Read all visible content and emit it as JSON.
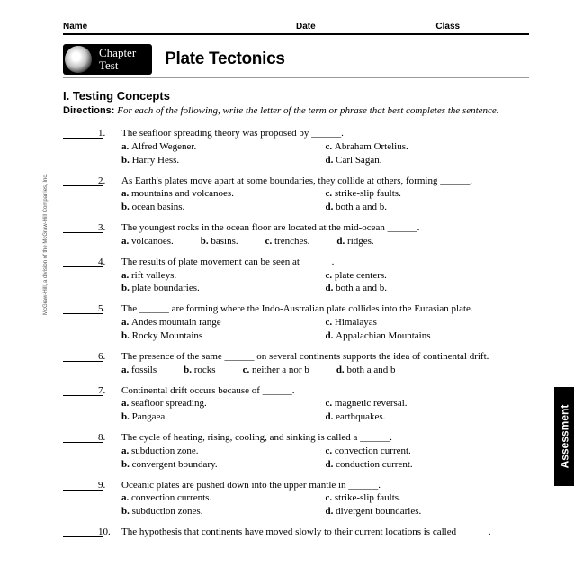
{
  "header": {
    "name": "Name",
    "date": "Date",
    "class": "Class"
  },
  "badge": {
    "line1": "Chapter",
    "line2": "Test"
  },
  "title": "Plate Tectonics",
  "section": "I.    Testing Concepts",
  "directions_label": "Directions:",
  "directions_text": "For each of the following, write the letter of the term or phrase that best completes the sentence.",
  "copyright": "McGraw-Hill, a division of the McGraw-Hill Companies, Inc.",
  "side_tab": "Assessment",
  "questions": [
    {
      "num": "1.",
      "stem": "The seafloor spreading theory was proposed by ______.",
      "layout": "2col",
      "opts": [
        [
          "a.",
          "Alfred Wegener."
        ],
        [
          "b.",
          "Harry Hess."
        ],
        [
          "c.",
          "Abraham Ortelius."
        ],
        [
          "d.",
          "Carl Sagan."
        ]
      ]
    },
    {
      "num": "2.",
      "stem": "As Earth's plates move apart at some boundaries, they collide at others, forming ______.",
      "layout": "2col",
      "opts": [
        [
          "a.",
          "mountains and volcanoes."
        ],
        [
          "b.",
          "ocean basins."
        ],
        [
          "c.",
          "strike-slip faults."
        ],
        [
          "d.",
          "both a and b."
        ]
      ]
    },
    {
      "num": "3.",
      "stem": "The youngest rocks in the ocean floor are located at the mid-ocean ______.",
      "layout": "row",
      "opts": [
        [
          "a.",
          "volcanoes."
        ],
        [
          "b.",
          "basins."
        ],
        [
          "c.",
          "trenches."
        ],
        [
          "d.",
          "ridges."
        ]
      ]
    },
    {
      "num": "4.",
      "stem": "The results of plate movement can be seen at ______.",
      "layout": "2col",
      "opts": [
        [
          "a.",
          "rift valleys."
        ],
        [
          "b.",
          "plate boundaries."
        ],
        [
          "c.",
          "plate centers."
        ],
        [
          "d.",
          "both a and b."
        ]
      ]
    },
    {
      "num": "5.",
      "stem": "The ______ are forming where the Indo-Australian plate collides into the Eurasian plate.",
      "layout": "2col",
      "opts": [
        [
          "a.",
          "Andes mountain range"
        ],
        [
          "b.",
          "Rocky Mountains"
        ],
        [
          "c.",
          "Himalayas"
        ],
        [
          "d.",
          "Appalachian Mountains"
        ]
      ]
    },
    {
      "num": "6.",
      "stem": "The presence of the same ______ on several continents supports the idea of continental drift.",
      "layout": "row",
      "opts": [
        [
          "a.",
          "fossils"
        ],
        [
          "b.",
          "rocks"
        ],
        [
          "c.",
          "neither a nor b"
        ],
        [
          "d.",
          "both a and b"
        ]
      ]
    },
    {
      "num": "7.",
      "stem": "Continental drift occurs because of ______.",
      "layout": "2col",
      "opts": [
        [
          "a.",
          "seafloor spreading."
        ],
        [
          "b.",
          "Pangaea."
        ],
        [
          "c.",
          "magnetic reversal."
        ],
        [
          "d.",
          "earthquakes."
        ]
      ]
    },
    {
      "num": "8.",
      "stem": "The cycle of heating, rising, cooling, and sinking is called a ______.",
      "layout": "2col",
      "opts": [
        [
          "a.",
          "subduction zone."
        ],
        [
          "b.",
          "convergent boundary."
        ],
        [
          "c.",
          "convection current."
        ],
        [
          "d.",
          "conduction current."
        ]
      ]
    },
    {
      "num": "9.",
      "stem": "Oceanic plates are pushed down into the upper mantle in ______.",
      "layout": "2col",
      "opts": [
        [
          "a.",
          "convection currents."
        ],
        [
          "b.",
          "subduction zones."
        ],
        [
          "c.",
          "strike-slip faults."
        ],
        [
          "d.",
          "divergent boundaries."
        ]
      ]
    },
    {
      "num": "10.",
      "stem": "The hypothesis that continents have moved slowly to their current locations is called ______.",
      "layout": "row",
      "opts": []
    }
  ]
}
